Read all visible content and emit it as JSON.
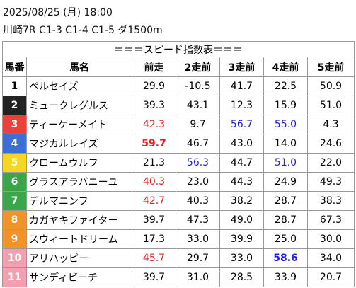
{
  "header": {
    "line1": "2025/08/25 (月) 18:00",
    "line2": "川崎7R C1-3 C1-4 C1-5 ダ1500m"
  },
  "table": {
    "title": "＝＝＝スピード指数表＝＝＝",
    "columns": [
      "馬番",
      "馬名",
      "前走",
      "2走前",
      "3走前",
      "4走前",
      "5走前"
    ],
    "rows": [
      {
        "number": "1",
        "name": "ペルセイズ",
        "frame": {
          "bg": "#ffffff",
          "fg": "#000000"
        },
        "scores": [
          "29.9",
          "-10.5",
          "41.7",
          "22.5",
          "50.9"
        ]
      },
      {
        "number": "2",
        "name": "ミュークレグルス",
        "frame": {
          "bg": "#222222",
          "fg": "#ffffff"
        },
        "scores": [
          "39.3",
          "43.1",
          "12.3",
          "15.9",
          "51.0"
        ]
      },
      {
        "number": "3",
        "name": "ティーケーメイト",
        "frame": {
          "bg": "#e8423a",
          "fg": "#ffffff"
        },
        "scores": [
          "42.3",
          "9.7",
          "56.7",
          "55.0",
          "4.3"
        ]
      },
      {
        "number": "4",
        "name": "マジカルレイズ",
        "frame": {
          "bg": "#3b6fd6",
          "fg": "#ffffff"
        },
        "scores": [
          "59.7",
          "46.7",
          "43.0",
          "14.0",
          "24.6"
        ]
      },
      {
        "number": "5",
        "name": "クロームウルフ",
        "frame": {
          "bg": "#f5d623",
          "fg": "#ffffff"
        },
        "scores": [
          "21.3",
          "56.3",
          "44.7",
          "51.0",
          "22.0"
        ]
      },
      {
        "number": "6",
        "name": "グラスアラバニーユ",
        "frame": {
          "bg": "#3aa54a",
          "fg": "#ffffff"
        },
        "scores": [
          "40.3",
          "23.0",
          "44.3",
          "24.9",
          "49.3"
        ]
      },
      {
        "number": "7",
        "name": "デルマニンフ",
        "frame": {
          "bg": "#3aa54a",
          "fg": "#ffffff"
        },
        "scores": [
          "42.7",
          "40.3",
          "38.2",
          "28.7",
          "38.3"
        ]
      },
      {
        "number": "8",
        "name": "カガヤキファイター",
        "frame": {
          "bg": "#f0932b",
          "fg": "#ffffff"
        },
        "scores": [
          "39.7",
          "47.3",
          "49.0",
          "28.7",
          "67.3"
        ]
      },
      {
        "number": "9",
        "name": "スウィートドリーム",
        "frame": {
          "bg": "#f0932b",
          "fg": "#ffffff"
        },
        "scores": [
          "17.3",
          "33.0",
          "39.9",
          "25.0",
          "30.0"
        ]
      },
      {
        "number": "10",
        "name": "アリハッピー",
        "frame": {
          "bg": "#f2a0b0",
          "fg": "#ffffff"
        },
        "scores": [
          "45.7",
          "29.7",
          "33.0",
          "58.6",
          "34.0"
        ]
      },
      {
        "number": "11",
        "name": "サンディビーチ",
        "frame": {
          "bg": "#f2a0b0",
          "fg": "#ffffff"
        },
        "scores": [
          "39.7",
          "31.0",
          "28.5",
          "33.9",
          "20.7"
        ]
      }
    ],
    "highlights": [
      {
        "row": 2,
        "col": 0,
        "color": "#e02020",
        "bold": false
      },
      {
        "row": 2,
        "col": 2,
        "color": "#2020d0",
        "bold": false
      },
      {
        "row": 2,
        "col": 3,
        "color": "#2020d0",
        "bold": false
      },
      {
        "row": 3,
        "col": 0,
        "color": "#e02020",
        "bold": true
      },
      {
        "row": 4,
        "col": 1,
        "color": "#2020d0",
        "bold": false
      },
      {
        "row": 4,
        "col": 3,
        "color": "#2020d0",
        "bold": false
      },
      {
        "row": 5,
        "col": 0,
        "color": "#e02020",
        "bold": false
      },
      {
        "row": 6,
        "col": 0,
        "color": "#e02020",
        "bold": false
      },
      {
        "row": 9,
        "col": 0,
        "color": "#e02020",
        "bold": false
      },
      {
        "row": 9,
        "col": 3,
        "color": "#2020d0",
        "bold": true
      }
    ]
  }
}
